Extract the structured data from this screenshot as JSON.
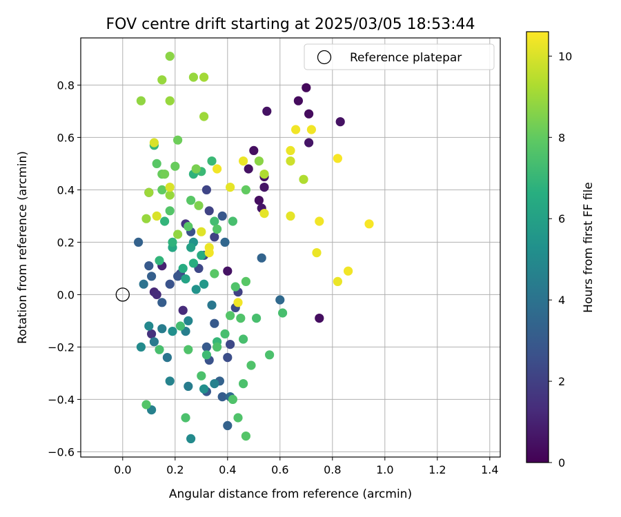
{
  "chart_data": {
    "type": "scatter",
    "title": "FOV centre drift starting at 2025/03/05 18:53:44",
    "xlabel": "Angular distance from reference (arcmin)",
    "ylabel": "Rotation from reference (arcmin)",
    "xlim": [
      -0.16,
      1.44
    ],
    "ylim": [
      -0.62,
      0.98
    ],
    "xticks": [
      0.0,
      0.2,
      0.4,
      0.6,
      0.8,
      1.0,
      1.2,
      1.4
    ],
    "xtick_labels": [
      "0.0",
      "0.2",
      "0.4",
      "0.6",
      "0.8",
      "1.0",
      "1.2",
      "1.4"
    ],
    "yticks": [
      -0.6,
      -0.4,
      -0.2,
      0.0,
      0.2,
      0.4,
      0.6,
      0.8
    ],
    "ytick_labels": [
      "−0.6",
      "−0.4",
      "−0.2",
      "0.0",
      "0.2",
      "0.4",
      "0.6",
      "0.8"
    ],
    "grid": true,
    "legend": {
      "placement": "top-right",
      "entries": [
        "Reference platepar"
      ]
    },
    "reference_point": {
      "x": 0.0,
      "y": 0.0
    },
    "colorbar": {
      "label": "Hours from first FF file",
      "colormap": "viridis",
      "range": [
        0,
        10.6
      ],
      "ticks": [
        0,
        2,
        4,
        6,
        8,
        10
      ],
      "tick_labels": [
        "0",
        "2",
        "4",
        "6",
        "8",
        "10"
      ]
    },
    "points": [
      {
        "x": 0.7,
        "y": 0.79,
        "c": 0.2
      },
      {
        "x": 0.67,
        "y": 0.74,
        "c": 0.3
      },
      {
        "x": 0.71,
        "y": 0.69,
        "c": 0.3
      },
      {
        "x": 0.83,
        "y": 0.66,
        "c": 0.5
      },
      {
        "x": 0.55,
        "y": 0.7,
        "c": 0.5
      },
      {
        "x": 0.71,
        "y": 0.58,
        "c": 0.6
      },
      {
        "x": 0.5,
        "y": 0.55,
        "c": 0.4
      },
      {
        "x": 0.48,
        "y": 0.48,
        "c": 0.5
      },
      {
        "x": 0.54,
        "y": 0.45,
        "c": 0.5
      },
      {
        "x": 0.54,
        "y": 0.41,
        "c": 0.6
      },
      {
        "x": 0.52,
        "y": 0.36,
        "c": 0.4
      },
      {
        "x": 0.53,
        "y": 0.33,
        "c": 0.6
      },
      {
        "x": 0.75,
        "y": -0.09,
        "c": 0.4
      },
      {
        "x": 0.4,
        "y": 0.09,
        "c": 0.5
      },
      {
        "x": 0.15,
        "y": 0.11,
        "c": 1.0
      },
      {
        "x": 0.12,
        "y": 0.01,
        "c": 1.2
      },
      {
        "x": 0.13,
        "y": 0.0,
        "c": 1.3
      },
      {
        "x": 0.11,
        "y": -0.15,
        "c": 1.5
      },
      {
        "x": 0.23,
        "y": -0.06,
        "c": 1.3
      },
      {
        "x": 0.24,
        "y": 0.27,
        "c": 1.6
      },
      {
        "x": 0.33,
        "y": 0.32,
        "c": 2.1
      },
      {
        "x": 0.35,
        "y": 0.22,
        "c": 2.1
      },
      {
        "x": 0.32,
        "y": 0.4,
        "c": 2.2
      },
      {
        "x": 0.31,
        "y": 0.15,
        "c": 2.2
      },
      {
        "x": 0.26,
        "y": 0.24,
        "c": 2.6
      },
      {
        "x": 0.29,
        "y": 0.1,
        "c": 2.3
      },
      {
        "x": 0.22,
        "y": 0.08,
        "c": 2.4
      },
      {
        "x": 0.21,
        "y": 0.07,
        "c": 2.8
      },
      {
        "x": 0.18,
        "y": 0.04,
        "c": 2.7
      },
      {
        "x": 0.15,
        "y": -0.03,
        "c": 3.1
      },
      {
        "x": 0.1,
        "y": 0.11,
        "c": 3.0
      },
      {
        "x": 0.11,
        "y": 0.07,
        "c": 3.2
      },
      {
        "x": 0.06,
        "y": 0.2,
        "c": 3.3
      },
      {
        "x": 0.1,
        "y": 0.39,
        "c": 3.3
      },
      {
        "x": 0.08,
        "y": 0.04,
        "c": 4.0
      },
      {
        "x": 0.44,
        "y": 0.01,
        "c": 2.0
      },
      {
        "x": 0.43,
        "y": -0.05,
        "c": 2.4
      },
      {
        "x": 0.35,
        "y": -0.11,
        "c": 3.0
      },
      {
        "x": 0.41,
        "y": -0.19,
        "c": 2.3
      },
      {
        "x": 0.4,
        "y": -0.24,
        "c": 2.5
      },
      {
        "x": 0.33,
        "y": -0.25,
        "c": 2.7
      },
      {
        "x": 0.32,
        "y": -0.2,
        "c": 3.0
      },
      {
        "x": 0.38,
        "y": 0.3,
        "c": 2.9
      },
      {
        "x": 0.39,
        "y": 0.2,
        "c": 3.5
      },
      {
        "x": 0.53,
        "y": 0.14,
        "c": 3.4
      },
      {
        "x": 0.6,
        "y": -0.02,
        "c": 3.6
      },
      {
        "x": 0.34,
        "y": -0.04,
        "c": 4.2
      },
      {
        "x": 0.37,
        "y": -0.33,
        "c": 3.3
      },
      {
        "x": 0.32,
        "y": -0.37,
        "c": 2.9
      },
      {
        "x": 0.38,
        "y": -0.39,
        "c": 3.1
      },
      {
        "x": 0.41,
        "y": -0.39,
        "c": 3.6
      },
      {
        "x": 0.4,
        "y": -0.5,
        "c": 3.3
      },
      {
        "x": 0.26,
        "y": -0.55,
        "c": 5.0
      },
      {
        "x": 0.35,
        "y": -0.34,
        "c": 4.6
      },
      {
        "x": 0.31,
        "y": -0.36,
        "c": 5.2
      },
      {
        "x": 0.25,
        "y": -0.35,
        "c": 4.4
      },
      {
        "x": 0.18,
        "y": -0.33,
        "c": 4.7
      },
      {
        "x": 0.11,
        "y": -0.44,
        "c": 4.6
      },
      {
        "x": 0.17,
        "y": -0.24,
        "c": 4.1
      },
      {
        "x": 0.12,
        "y": -0.18,
        "c": 4.3
      },
      {
        "x": 0.15,
        "y": -0.13,
        "c": 4.4
      },
      {
        "x": 0.1,
        "y": -0.12,
        "c": 4.9
      },
      {
        "x": 0.07,
        "y": -0.2,
        "c": 5.0
      },
      {
        "x": 0.24,
        "y": -0.14,
        "c": 4.5
      },
      {
        "x": 0.25,
        "y": -0.1,
        "c": 4.8
      },
      {
        "x": 0.19,
        "y": -0.14,
        "c": 5.2
      },
      {
        "x": 0.27,
        "y": 0.2,
        "c": 5.4
      },
      {
        "x": 0.26,
        "y": 0.18,
        "c": 6.0
      },
      {
        "x": 0.3,
        "y": 0.15,
        "c": 6.5
      },
      {
        "x": 0.27,
        "y": 0.12,
        "c": 6.6
      },
      {
        "x": 0.31,
        "y": 0.04,
        "c": 5.6
      },
      {
        "x": 0.24,
        "y": 0.06,
        "c": 6.1
      },
      {
        "x": 0.28,
        "y": 0.02,
        "c": 5.4
      },
      {
        "x": 0.19,
        "y": 0.18,
        "c": 6.3
      },
      {
        "x": 0.19,
        "y": 0.2,
        "c": 6.8
      },
      {
        "x": 0.23,
        "y": 0.1,
        "c": 6.5
      },
      {
        "x": 0.14,
        "y": 0.13,
        "c": 6.9
      },
      {
        "x": 0.16,
        "y": 0.28,
        "c": 6.9
      },
      {
        "x": 0.12,
        "y": 0.57,
        "c": 7.0
      },
      {
        "x": 0.27,
        "y": 0.46,
        "c": 6.8
      },
      {
        "x": 0.3,
        "y": 0.47,
        "c": 7.1
      },
      {
        "x": 0.34,
        "y": 0.51,
        "c": 7.1
      },
      {
        "x": 0.35,
        "y": 0.28,
        "c": 7.3
      },
      {
        "x": 0.32,
        "y": -0.23,
        "c": 7.2
      },
      {
        "x": 0.36,
        "y": -0.18,
        "c": 7.0
      },
      {
        "x": 0.39,
        "y": -0.15,
        "c": 7.4
      },
      {
        "x": 0.36,
        "y": -0.2,
        "c": 7.5
      },
      {
        "x": 0.42,
        "y": -0.4,
        "c": 7.6
      },
      {
        "x": 0.44,
        "y": -0.47,
        "c": 7.6
      },
      {
        "x": 0.47,
        "y": -0.54,
        "c": 7.7
      },
      {
        "x": 0.3,
        "y": -0.31,
        "c": 7.5
      },
      {
        "x": 0.24,
        "y": -0.47,
        "c": 7.5
      },
      {
        "x": 0.09,
        "y": -0.42,
        "c": 7.7
      },
      {
        "x": 0.22,
        "y": -0.12,
        "c": 7.3
      },
      {
        "x": 0.14,
        "y": -0.21,
        "c": 7.4
      },
      {
        "x": 0.25,
        "y": -0.21,
        "c": 7.6
      },
      {
        "x": 0.46,
        "y": -0.17,
        "c": 7.4
      },
      {
        "x": 0.46,
        "y": -0.34,
        "c": 7.5
      },
      {
        "x": 0.49,
        "y": -0.27,
        "c": 7.6
      },
      {
        "x": 0.56,
        "y": -0.23,
        "c": 7.5
      },
      {
        "x": 0.61,
        "y": -0.07,
        "c": 7.4
      },
      {
        "x": 0.51,
        "y": -0.09,
        "c": 7.4
      },
      {
        "x": 0.45,
        "y": -0.09,
        "c": 7.6
      },
      {
        "x": 0.41,
        "y": -0.08,
        "c": 7.7
      },
      {
        "x": 0.43,
        "y": 0.03,
        "c": 7.6
      },
      {
        "x": 0.47,
        "y": 0.05,
        "c": 7.8
      },
      {
        "x": 0.35,
        "y": 0.08,
        "c": 7.8
      },
      {
        "x": 0.42,
        "y": 0.28,
        "c": 7.4
      },
      {
        "x": 0.36,
        "y": 0.25,
        "c": 7.7
      },
      {
        "x": 0.25,
        "y": 0.26,
        "c": 7.8
      },
      {
        "x": 0.18,
        "y": 0.32,
        "c": 7.7
      },
      {
        "x": 0.26,
        "y": 0.36,
        "c": 7.8
      },
      {
        "x": 0.15,
        "y": 0.4,
        "c": 8.0
      },
      {
        "x": 0.13,
        "y": 0.5,
        "c": 7.8
      },
      {
        "x": 0.15,
        "y": 0.46,
        "c": 8.1
      },
      {
        "x": 0.16,
        "y": 0.46,
        "c": 8.3
      },
      {
        "x": 0.21,
        "y": 0.59,
        "c": 8.2
      },
      {
        "x": 0.2,
        "y": 0.49,
        "c": 8.1
      },
      {
        "x": 0.28,
        "y": 0.48,
        "c": 8.4
      },
      {
        "x": 0.47,
        "y": 0.4,
        "c": 8.0
      },
      {
        "x": 0.29,
        "y": 0.34,
        "c": 8.5
      },
      {
        "x": 0.21,
        "y": 0.23,
        "c": 8.8
      },
      {
        "x": 0.18,
        "y": 0.38,
        "c": 8.9
      },
      {
        "x": 0.1,
        "y": 0.39,
        "c": 9.0
      },
      {
        "x": 0.09,
        "y": 0.29,
        "c": 8.9
      },
      {
        "x": 0.07,
        "y": 0.74,
        "c": 8.8
      },
      {
        "x": 0.15,
        "y": 0.82,
        "c": 8.9
      },
      {
        "x": 0.18,
        "y": 0.91,
        "c": 8.7
      },
      {
        "x": 0.18,
        "y": 0.74,
        "c": 8.9
      },
      {
        "x": 0.27,
        "y": 0.83,
        "c": 8.9
      },
      {
        "x": 0.31,
        "y": 0.83,
        "c": 9.1
      },
      {
        "x": 0.31,
        "y": 0.68,
        "c": 9.0
      },
      {
        "x": 0.52,
        "y": 0.51,
        "c": 8.7
      },
      {
        "x": 0.54,
        "y": 0.46,
        "c": 9.3
      },
      {
        "x": 0.69,
        "y": 0.44,
        "c": 9.3
      },
      {
        "x": 0.64,
        "y": 0.51,
        "c": 9.8
      },
      {
        "x": 0.54,
        "y": 0.31,
        "c": 10.2
      },
      {
        "x": 0.12,
        "y": 0.58,
        "c": 10.0
      },
      {
        "x": 0.18,
        "y": 0.41,
        "c": 10.0
      },
      {
        "x": 0.13,
        "y": 0.3,
        "c": 10.0
      },
      {
        "x": 0.3,
        "y": 0.24,
        "c": 10.1
      },
      {
        "x": 0.33,
        "y": 0.18,
        "c": 10.3
      },
      {
        "x": 0.33,
        "y": 0.16,
        "c": 10.4
      },
      {
        "x": 0.36,
        "y": 0.48,
        "c": 10.4
      },
      {
        "x": 0.46,
        "y": 0.51,
        "c": 10.3
      },
      {
        "x": 0.41,
        "y": 0.41,
        "c": 10.2
      },
      {
        "x": 0.44,
        "y": -0.03,
        "c": 10.4
      },
      {
        "x": 0.64,
        "y": 0.55,
        "c": 10.3
      },
      {
        "x": 0.66,
        "y": 0.63,
        "c": 10.4
      },
      {
        "x": 0.72,
        "y": 0.63,
        "c": 10.4
      },
      {
        "x": 0.64,
        "y": 0.3,
        "c": 10.2
      },
      {
        "x": 0.75,
        "y": 0.28,
        "c": 10.4
      },
      {
        "x": 0.74,
        "y": 0.16,
        "c": 10.3
      },
      {
        "x": 0.82,
        "y": 0.52,
        "c": 10.5
      },
      {
        "x": 0.82,
        "y": 0.05,
        "c": 10.3
      },
      {
        "x": 0.86,
        "y": 0.09,
        "c": 10.4
      },
      {
        "x": 0.94,
        "y": 0.27,
        "c": 10.5
      }
    ]
  }
}
